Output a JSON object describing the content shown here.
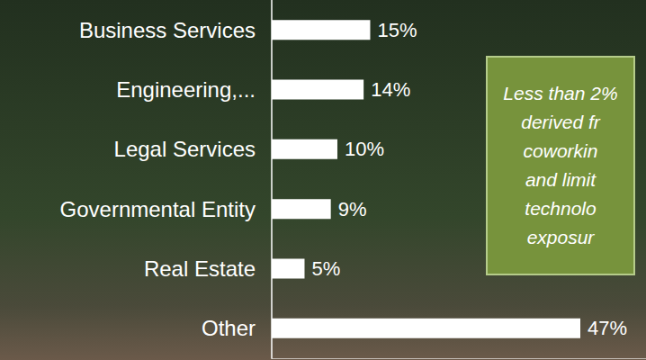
{
  "chart_data": {
    "type": "bar",
    "orientation": "horizontal",
    "categories": [
      "Business Services",
      "Engineering,...",
      "Legal Services",
      "Governmental Entity",
      "Real Estate",
      "Other"
    ],
    "values": [
      15,
      14,
      10,
      9,
      5,
      47
    ],
    "value_labels": [
      "15%",
      "14%",
      "10%",
      "9%",
      "5%",
      "47%"
    ],
    "color": "#ffffff",
    "xlim": [
      0,
      57
    ],
    "xticks": [],
    "grid": false,
    "data_labels": true,
    "tick_labels": "y",
    "annotation": [
      "Less than 2%",
      "derived fr",
      "coworkin",
      "and limit",
      "technolo",
      "exposur"
    ]
  }
}
